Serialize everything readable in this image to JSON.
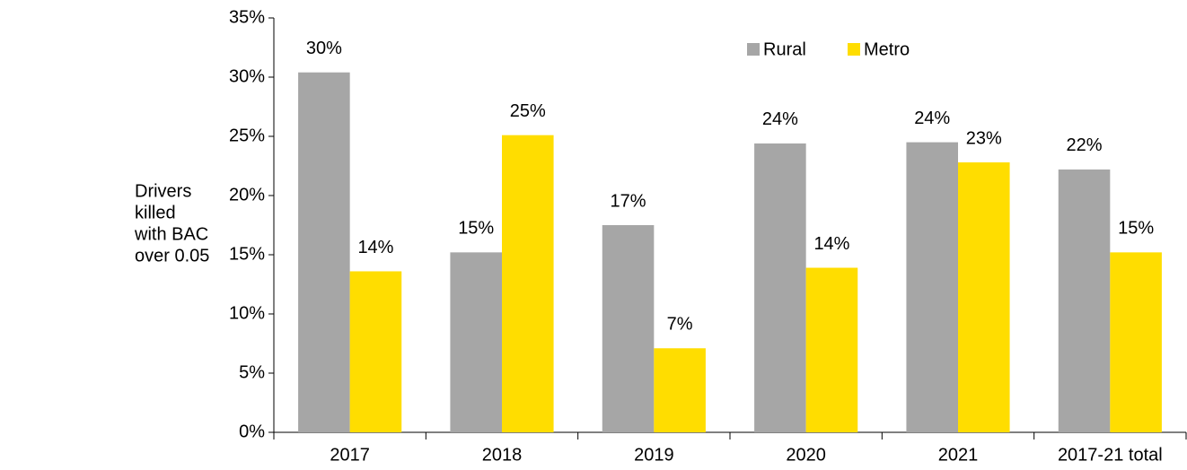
{
  "chart_data": {
    "type": "bar",
    "ylabel": [
      "Drivers",
      "killed",
      "with BAC",
      "over 0.05"
    ],
    "categories": [
      "2017",
      "2018",
      "2019",
      "2020",
      "2021",
      "2017-21 total"
    ],
    "series": [
      {
        "name": "Rural",
        "color": "#a6a6a6",
        "values": [
          30.4,
          15.2,
          17.5,
          24.4,
          24.5,
          22.2
        ],
        "value_labels": [
          "30%",
          "15%",
          "17%",
          "24%",
          "24%",
          "22%"
        ]
      },
      {
        "name": "Metro",
        "color": "#ffdd00",
        "values": [
          13.6,
          25.1,
          7.1,
          13.9,
          22.8,
          15.2
        ],
        "value_labels": [
          "14%",
          "25%",
          "7%",
          "14%",
          "23%",
          "15%"
        ]
      }
    ],
    "ylim": [
      0,
      35
    ],
    "yticks": [
      {
        "value": 0,
        "label": "0%"
      },
      {
        "value": 5,
        "label": "5%"
      },
      {
        "value": 10,
        "label": "10%"
      },
      {
        "value": 15,
        "label": "15%"
      },
      {
        "value": 20,
        "label": "20%"
      },
      {
        "value": 25,
        "label": "25%"
      },
      {
        "value": 30,
        "label": "30%"
      },
      {
        "value": 35,
        "label": "35%"
      }
    ],
    "grid": false,
    "legend": "top"
  }
}
